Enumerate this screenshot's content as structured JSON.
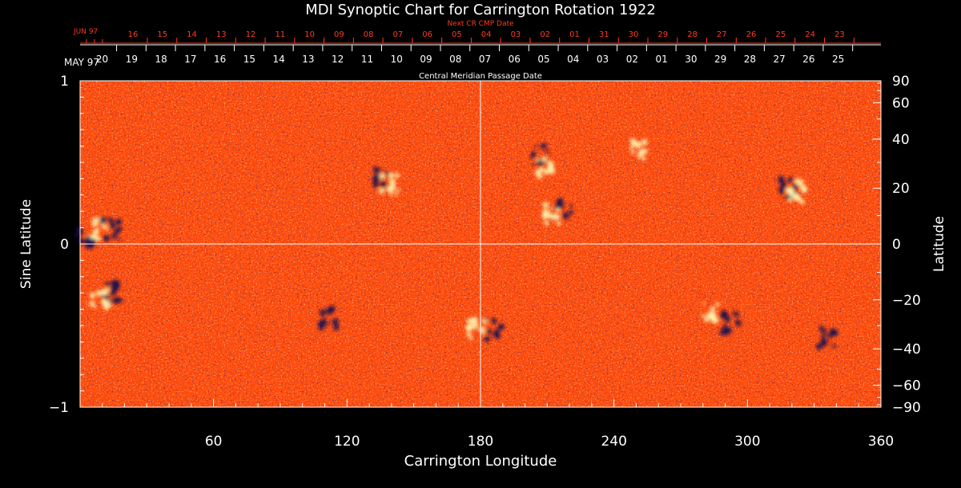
{
  "chart_data": {
    "type": "heatmap",
    "title": "MDI Synoptic Chart for Carrington Rotation 1922",
    "xlabel": "Carrington Longitude",
    "ylabel_left": "Sine Latitude",
    "ylabel_right": "Latitude",
    "xlim": [
      0,
      360
    ],
    "ylim": [
      -1,
      1
    ],
    "x_ticks": [
      60,
      120,
      180,
      240,
      300,
      360
    ],
    "y_ticks_left": [
      {
        "value": 1,
        "label": "1"
      },
      {
        "value": 0,
        "label": "0"
      },
      {
        "value": -1,
        "label": "−1"
      }
    ],
    "y_ticks_right": [
      90,
      60,
      40,
      20,
      0,
      -20,
      -40,
      -60,
      -90
    ],
    "y_tick_labels_right": [
      "90",
      "60",
      "40",
      "20",
      "0",
      "−20",
      "−40",
      "−60",
      "−90"
    ],
    "cmp_axis": {
      "label": "Central Meridian Passage Date",
      "month_label": "MAY 97",
      "dates": [
        "20",
        "19",
        "18",
        "17",
        "16",
        "15",
        "14",
        "13",
        "12",
        "11",
        "10",
        "09",
        "08",
        "07",
        "06",
        "05",
        "04",
        "03",
        "02",
        "01",
        "30",
        "29",
        "28",
        "27",
        "26",
        "25"
      ]
    },
    "next_cmp_axis": {
      "label": "Next CR CMP Date",
      "month_label": "JUN 97",
      "dates": [
        "16",
        "15",
        "14",
        "13",
        "12",
        "11",
        "10",
        "09",
        "08",
        "07",
        "06",
        "05",
        "04",
        "03",
        "02",
        "01",
        "31",
        "30",
        "29",
        "28",
        "27",
        "26",
        "25",
        "24",
        "23"
      ]
    },
    "colors": {
      "background": "#ff4a0a",
      "positive_flux": "#fff6b0",
      "negative_flux": "#1a1050",
      "axis": "#ffffff",
      "next_axis": "#ff3b1f"
    },
    "magnetic_features": [
      {
        "polarity": "positive",
        "lon": 8,
        "sinlat": 0.09
      },
      {
        "polarity": "negative",
        "lon": 14,
        "sinlat": 0.09
      },
      {
        "polarity": "negative",
        "lon": 2,
        "sinlat": 0.04
      },
      {
        "polarity": "negative",
        "lon": 136,
        "sinlat": 0.4
      },
      {
        "polarity": "positive",
        "lon": 139,
        "sinlat": 0.36
      },
      {
        "polarity": "negative",
        "lon": 207,
        "sinlat": 0.54
      },
      {
        "polarity": "positive",
        "lon": 209,
        "sinlat": 0.46
      },
      {
        "polarity": "negative",
        "lon": 217,
        "sinlat": 0.22
      },
      {
        "polarity": "positive",
        "lon": 212,
        "sinlat": 0.18
      },
      {
        "polarity": "negative",
        "lon": 319,
        "sinlat": 0.34
      },
      {
        "polarity": "positive",
        "lon": 322,
        "sinlat": 0.32
      },
      {
        "polarity": "negative",
        "lon": 15,
        "sinlat": -0.3
      },
      {
        "polarity": "positive",
        "lon": 9,
        "sinlat": -0.34
      },
      {
        "polarity": "positive",
        "lon": 178,
        "sinlat": -0.52
      },
      {
        "polarity": "negative",
        "lon": 186,
        "sinlat": -0.52
      },
      {
        "polarity": "positive",
        "lon": 284,
        "sinlat": -0.41
      },
      {
        "polarity": "negative",
        "lon": 292,
        "sinlat": -0.48
      },
      {
        "polarity": "negative",
        "lon": 112,
        "sinlat": -0.46
      },
      {
        "polarity": "positive",
        "lon": 250,
        "sinlat": 0.58
      },
      {
        "polarity": "negative",
        "lon": 336,
        "sinlat": -0.57
      }
    ]
  }
}
